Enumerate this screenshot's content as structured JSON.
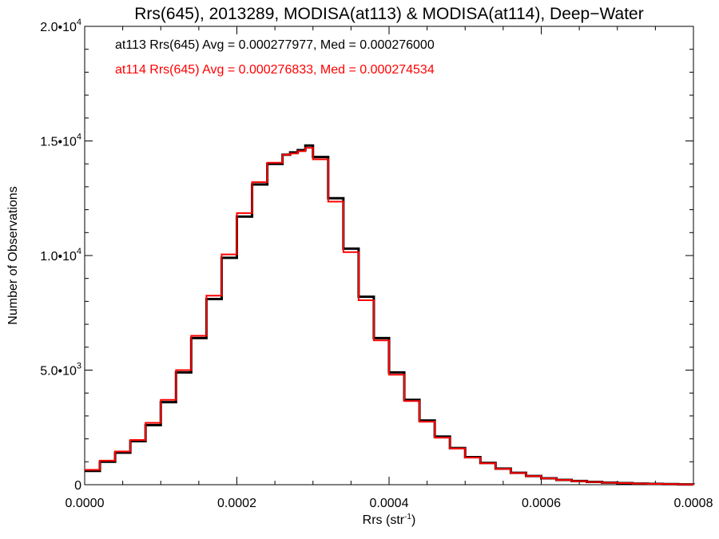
{
  "chart_data": {
    "type": "line",
    "title": "Rrs(645), 2013289, MODISA(at113) & MODISA(at114), Deep−Water",
    "xlabel": "Rrs (str",
    "xlabel_sup": "-1",
    "xlabel_close": ")",
    "ylabel": "Number of Observations",
    "xlim": [
      0,
      0.0008
    ],
    "ylim": [
      0,
      20000
    ],
    "x_ticks": [
      {
        "value": 0,
        "label": "0.0000"
      },
      {
        "value": 0.0002,
        "label": "0.0002"
      },
      {
        "value": 0.0004,
        "label": "0.0004"
      },
      {
        "value": 0.0006,
        "label": "0.0006"
      },
      {
        "value": 0.0008,
        "label": "0.0008"
      }
    ],
    "y_ticks": [
      {
        "value": 0,
        "label": "0",
        "sup": ""
      },
      {
        "value": 5000,
        "label": "5.0•10",
        "sup": "3"
      },
      {
        "value": 10000,
        "label": "1.0•10",
        "sup": "4"
      },
      {
        "value": 15000,
        "label": "1.5•10",
        "sup": "4"
      },
      {
        "value": 20000,
        "label": "2.0•10",
        "sup": "4"
      }
    ],
    "annotations": [
      "at113 Rrs(645) Avg = 0.000277977, Med = 0.000276000",
      "at114 Rrs(645) Avg = 0.000276833, Med = 0.000274534"
    ],
    "series": [
      {
        "name": "at113",
        "color": "#000000",
        "x": [
          0.0,
          2e-05,
          4e-05,
          6e-05,
          8e-05,
          0.0001,
          0.00012,
          0.00014,
          0.00016,
          0.00018,
          0.0002,
          0.00022,
          0.00024,
          0.00026,
          0.00027,
          0.00028,
          0.00029,
          0.0003,
          0.00032,
          0.00034,
          0.00036,
          0.00038,
          0.0004,
          0.00042,
          0.00044,
          0.00046,
          0.00048,
          0.0005,
          0.00052,
          0.00054,
          0.00056,
          0.00058,
          0.0006,
          0.00062,
          0.00064,
          0.00066,
          0.00068,
          0.0007,
          0.00072,
          0.00074,
          0.00076,
          0.00078,
          0.0008
        ],
        "y": [
          600,
          1000,
          1400,
          1900,
          2600,
          3600,
          4900,
          6400,
          8100,
          9900,
          11700,
          13100,
          14000,
          14400,
          14500,
          14600,
          14800,
          14300,
          12500,
          10300,
          8200,
          6400,
          4900,
          3700,
          2800,
          2100,
          1600,
          1200,
          950,
          700,
          520,
          380,
          280,
          210,
          160,
          120,
          90,
          70,
          50,
          35,
          25,
          15,
          10
        ]
      },
      {
        "name": "at114",
        "color": "#ff0000",
        "x": [
          0.0,
          2e-05,
          4e-05,
          6e-05,
          8e-05,
          0.0001,
          0.00012,
          0.00014,
          0.00016,
          0.00018,
          0.0002,
          0.00022,
          0.00024,
          0.00026,
          0.00027,
          0.00028,
          0.00029,
          0.0003,
          0.00032,
          0.00034,
          0.00036,
          0.00038,
          0.0004,
          0.00042,
          0.00044,
          0.00046,
          0.00048,
          0.0005,
          0.00052,
          0.00054,
          0.00056,
          0.00058,
          0.0006,
          0.00062,
          0.00064,
          0.00066,
          0.00068,
          0.0007,
          0.00072,
          0.00074,
          0.00076,
          0.00078,
          0.0008
        ],
        "y": [
          650,
          1050,
          1450,
          1950,
          2700,
          3700,
          5000,
          6500,
          8250,
          10050,
          11850,
          13200,
          14050,
          14400,
          14450,
          14550,
          14700,
          14200,
          12350,
          10150,
          8050,
          6300,
          4800,
          3650,
          2750,
          2050,
          1580,
          1180,
          930,
          690,
          510,
          375,
          275,
          205,
          155,
          118,
          88,
          68,
          48,
          34,
          24,
          14,
          10
        ]
      }
    ]
  }
}
